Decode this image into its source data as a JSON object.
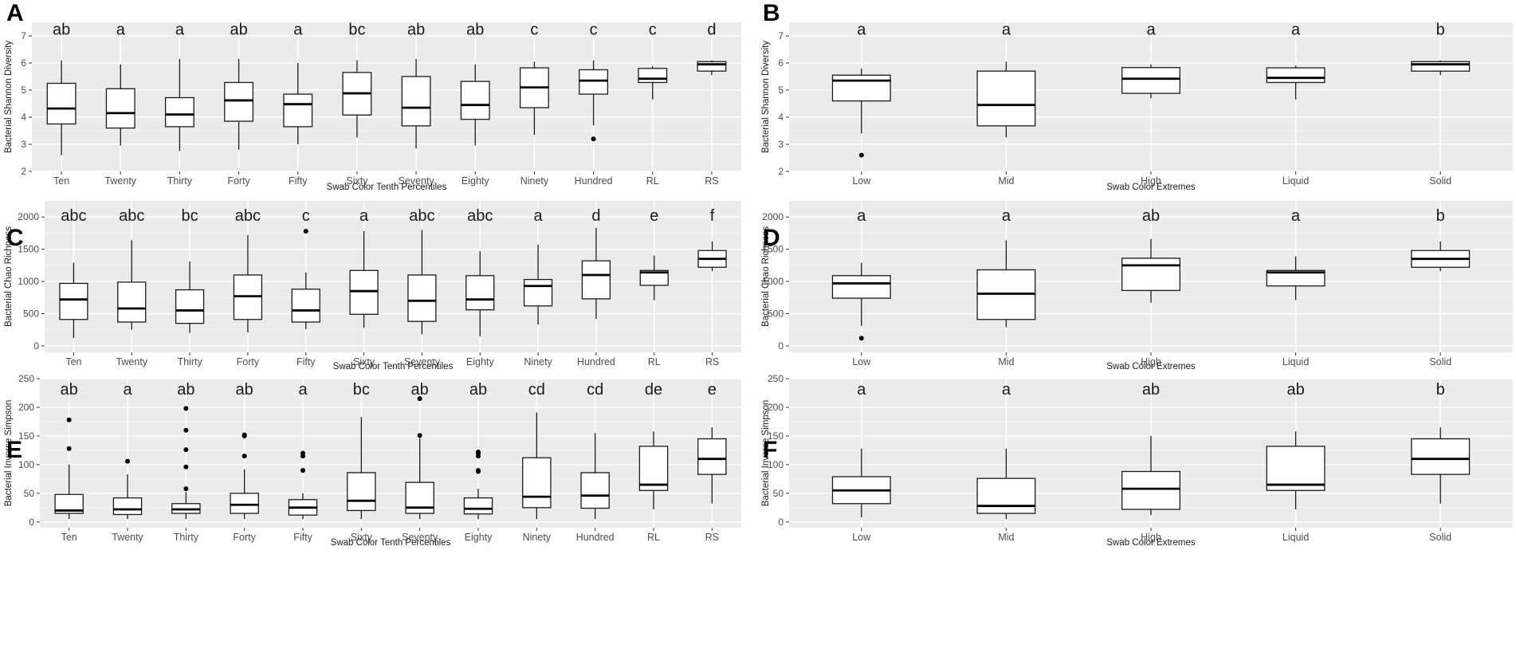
{
  "chart_data": [
    {
      "type": "box",
      "panel": "A",
      "xlabel": "Swab Color Tenth Percentiles",
      "ylabel": "Bacterial Shannon Diversity",
      "ylim": [
        2,
        7.5
      ],
      "yticks": [
        2,
        3,
        4,
        5,
        6,
        7
      ],
      "categories": [
        "Ten",
        "Twenty",
        "Thirty",
        "Forty",
        "Fifty",
        "Sixty",
        "Seventy",
        "Eighty",
        "Ninety",
        "Hundred",
        "RL",
        "RS"
      ],
      "letters": [
        "ab",
        "a",
        "a",
        "ab",
        "a",
        "bc",
        "ab",
        "ab",
        "c",
        "c",
        "c",
        "d"
      ],
      "boxes": [
        {
          "min": 2.6,
          "q1": 3.75,
          "median": 4.32,
          "q3": 5.25,
          "max": 6.1,
          "outliers": []
        },
        {
          "min": 2.95,
          "q1": 3.6,
          "median": 4.15,
          "q3": 5.05,
          "max": 5.95,
          "outliers": []
        },
        {
          "min": 2.75,
          "q1": 3.65,
          "median": 4.1,
          "q3": 4.72,
          "max": 6.15,
          "outliers": []
        },
        {
          "min": 2.8,
          "q1": 3.85,
          "median": 4.62,
          "q3": 5.28,
          "max": 6.15,
          "outliers": []
        },
        {
          "min": 3.0,
          "q1": 3.65,
          "median": 4.48,
          "q3": 4.85,
          "max": 6.0,
          "outliers": []
        },
        {
          "min": 3.25,
          "q1": 4.08,
          "median": 4.88,
          "q3": 5.65,
          "max": 6.1,
          "outliers": []
        },
        {
          "min": 2.85,
          "q1": 3.68,
          "median": 4.35,
          "q3": 5.5,
          "max": 6.15,
          "outliers": []
        },
        {
          "min": 2.95,
          "q1": 3.92,
          "median": 4.45,
          "q3": 5.32,
          "max": 5.95,
          "outliers": []
        },
        {
          "min": 3.35,
          "q1": 4.35,
          "median": 5.1,
          "q3": 5.82,
          "max": 6.05,
          "outliers": []
        },
        {
          "min": 3.7,
          "q1": 4.85,
          "median": 5.35,
          "q3": 5.75,
          "max": 6.1,
          "outliers": [
            3.2
          ]
        },
        {
          "min": 4.65,
          "q1": 5.28,
          "median": 5.42,
          "q3": 5.8,
          "max": 5.88,
          "outliers": []
        },
        {
          "min": 5.55,
          "q1": 5.7,
          "median": 5.95,
          "q3": 6.05,
          "max": 6.1,
          "outliers": []
        }
      ]
    },
    {
      "type": "box",
      "panel": "B",
      "xlabel": "Swab Color Extremes",
      "ylabel": "Bacterial Shannon Diversity",
      "ylim": [
        2,
        7.5
      ],
      "yticks": [
        2,
        3,
        4,
        5,
        6,
        7
      ],
      "categories": [
        "Low",
        "Mid",
        "High",
        "Liquid",
        "Solid"
      ],
      "letters": [
        "a",
        "a",
        "a",
        "a",
        "b"
      ],
      "boxes": [
        {
          "min": 3.4,
          "q1": 4.6,
          "median": 5.35,
          "q3": 5.55,
          "max": 5.8,
          "outliers": [
            2.6
          ]
        },
        {
          "min": 3.25,
          "q1": 3.68,
          "median": 4.45,
          "q3": 5.7,
          "max": 6.05,
          "outliers": []
        },
        {
          "min": 4.7,
          "q1": 4.88,
          "median": 5.42,
          "q3": 5.83,
          "max": 5.95,
          "outliers": []
        },
        {
          "min": 4.65,
          "q1": 5.28,
          "median": 5.45,
          "q3": 5.82,
          "max": 5.9,
          "outliers": []
        },
        {
          "min": 5.55,
          "q1": 5.7,
          "median": 5.95,
          "q3": 6.05,
          "max": 6.1,
          "outliers": []
        }
      ]
    },
    {
      "type": "box",
      "panel": "C",
      "xlabel": "Swab Color Tenth Percentiles",
      "ylabel": "Bacterial Chao Richness",
      "ylim": [
        -100,
        2250
      ],
      "yticks": [
        0,
        500,
        1000,
        1500,
        2000
      ],
      "categories": [
        "Ten",
        "Twenty",
        "Thirty",
        "Forty",
        "Fifty",
        "Sixty",
        "Seventy",
        "Eighty",
        "Ninety",
        "Hundred",
        "RL",
        "RS"
      ],
      "letters": [
        "abc",
        "abc",
        "bc",
        "abc",
        "c",
        "a",
        "abc",
        "abc",
        "a",
        "d",
        "e",
        "f"
      ],
      "boxes": [
        {
          "min": 120,
          "q1": 410,
          "median": 720,
          "q3": 970,
          "max": 1290,
          "outliers": []
        },
        {
          "min": 250,
          "q1": 370,
          "median": 580,
          "q3": 990,
          "max": 1640,
          "outliers": []
        },
        {
          "min": 200,
          "q1": 350,
          "median": 550,
          "q3": 870,
          "max": 1310,
          "outliers": []
        },
        {
          "min": 210,
          "q1": 410,
          "median": 770,
          "q3": 1100,
          "max": 1720,
          "outliers": []
        },
        {
          "min": 260,
          "q1": 370,
          "median": 550,
          "q3": 880,
          "max": 1140,
          "outliers": [
            1780
          ]
        },
        {
          "min": 280,
          "q1": 490,
          "median": 850,
          "q3": 1170,
          "max": 1780,
          "outliers": []
        },
        {
          "min": 180,
          "q1": 380,
          "median": 700,
          "q3": 1100,
          "max": 1800,
          "outliers": []
        },
        {
          "min": 150,
          "q1": 560,
          "median": 720,
          "q3": 1090,
          "max": 1470,
          "outliers": []
        },
        {
          "min": 330,
          "q1": 620,
          "median": 930,
          "q3": 1030,
          "max": 1570,
          "outliers": []
        },
        {
          "min": 420,
          "q1": 730,
          "median": 1100,
          "q3": 1320,
          "max": 1830,
          "outliers": []
        },
        {
          "min": 710,
          "q1": 940,
          "median": 1140,
          "q3": 1170,
          "max": 1400,
          "outliers": []
        },
        {
          "min": 1160,
          "q1": 1220,
          "median": 1350,
          "q3": 1480,
          "max": 1620,
          "outliers": []
        }
      ]
    },
    {
      "type": "box",
      "panel": "D",
      "xlabel": "Swab Color Extremes",
      "ylabel": "Bacterial Chao Richness",
      "ylim": [
        -100,
        2250
      ],
      "yticks": [
        0,
        500,
        1000,
        1500,
        2000
      ],
      "categories": [
        "Low",
        "Mid",
        "High",
        "Liquid",
        "Solid"
      ],
      "letters": [
        "a",
        "a",
        "ab",
        "a",
        "b"
      ],
      "boxes": [
        {
          "min": 310,
          "q1": 740,
          "median": 970,
          "q3": 1090,
          "max": 1290,
          "outliers": [
            120
          ]
        },
        {
          "min": 290,
          "q1": 410,
          "median": 810,
          "q3": 1180,
          "max": 1640,
          "outliers": []
        },
        {
          "min": 670,
          "q1": 860,
          "median": 1250,
          "q3": 1360,
          "max": 1660,
          "outliers": []
        },
        {
          "min": 710,
          "q1": 930,
          "median": 1140,
          "q3": 1170,
          "max": 1390,
          "outliers": []
        },
        {
          "min": 1160,
          "q1": 1220,
          "median": 1350,
          "q3": 1480,
          "max": 1620,
          "outliers": []
        }
      ]
    },
    {
      "type": "box",
      "panel": "E",
      "xlabel": "Swab Color Tenth Percentiles",
      "ylabel": "Bacterial Inverse Simpson",
      "ylim": [
        -10,
        250
      ],
      "yticks": [
        0,
        50,
        100,
        150,
        200,
        250
      ],
      "categories": [
        "Ten",
        "Twenty",
        "Thirty",
        "Forty",
        "Fifty",
        "Sixty",
        "Seventy",
        "Eighty",
        "Ninety",
        "Hundred",
        "RL",
        "RS"
      ],
      "letters": [
        "ab",
        "a",
        "ab",
        "ab",
        "a",
        "bc",
        "ab",
        "ab",
        "cd",
        "cd",
        "de",
        "e"
      ],
      "boxes": [
        {
          "min": 5,
          "q1": 15,
          "median": 20,
          "q3": 48,
          "max": 100,
          "outliers": [
            128,
            178
          ]
        },
        {
          "min": 5,
          "q1": 13,
          "median": 22,
          "q3": 42,
          "max": 83,
          "outliers": [
            106
          ]
        },
        {
          "min": 5,
          "q1": 15,
          "median": 22,
          "q3": 32,
          "max": 52,
          "outliers": [
            58,
            96,
            126,
            160,
            198
          ]
        },
        {
          "min": 5,
          "q1": 15,
          "median": 30,
          "q3": 50,
          "max": 92,
          "outliers": [
            115,
            150,
            152
          ]
        },
        {
          "min": 5,
          "q1": 12,
          "median": 25,
          "q3": 39,
          "max": 50,
          "outliers": [
            90,
            115,
            120
          ]
        },
        {
          "min": 5,
          "q1": 20,
          "median": 37,
          "q3": 86,
          "max": 183,
          "outliers": []
        },
        {
          "min": 5,
          "q1": 15,
          "median": 25,
          "q3": 69,
          "max": 146,
          "outliers": [
            151,
            215
          ]
        },
        {
          "min": 5,
          "q1": 14,
          "median": 23,
          "q3": 42,
          "max": 58,
          "outliers": [
            88,
            90,
            115,
            120,
            122
          ]
        },
        {
          "min": 5,
          "q1": 25,
          "median": 44,
          "q3": 112,
          "max": 191,
          "outliers": []
        },
        {
          "min": 5,
          "q1": 24,
          "median": 46,
          "q3": 86,
          "max": 155,
          "outliers": []
        },
        {
          "min": 22,
          "q1": 55,
          "median": 65,
          "q3": 132,
          "max": 158,
          "outliers": []
        },
        {
          "min": 32,
          "q1": 83,
          "median": 110,
          "q3": 145,
          "max": 165,
          "outliers": []
        }
      ]
    },
    {
      "type": "box",
      "panel": "F",
      "xlabel": "Swab Color Extremes",
      "ylabel": "Bacterial Inverse Simpson",
      "ylim": [
        -10,
        250
      ],
      "yticks": [
        0,
        50,
        100,
        150,
        200,
        250
      ],
      "categories": [
        "Low",
        "Mid",
        "High",
        "Liquid",
        "Solid"
      ],
      "letters": [
        "a",
        "a",
        "ab",
        "ab",
        "b"
      ],
      "boxes": [
        {
          "min": 8,
          "q1": 32,
          "median": 55,
          "q3": 79,
          "max": 128,
          "outliers": []
        },
        {
          "min": 5,
          "q1": 15,
          "median": 28,
          "q3": 76,
          "max": 128,
          "outliers": []
        },
        {
          "min": 12,
          "q1": 22,
          "median": 58,
          "q3": 88,
          "max": 150,
          "outliers": []
        },
        {
          "min": 22,
          "q1": 55,
          "median": 65,
          "q3": 132,
          "max": 158,
          "outliers": []
        },
        {
          "min": 32,
          "q1": 83,
          "median": 110,
          "q3": 145,
          "max": 165,
          "outliers": []
        }
      ]
    }
  ]
}
